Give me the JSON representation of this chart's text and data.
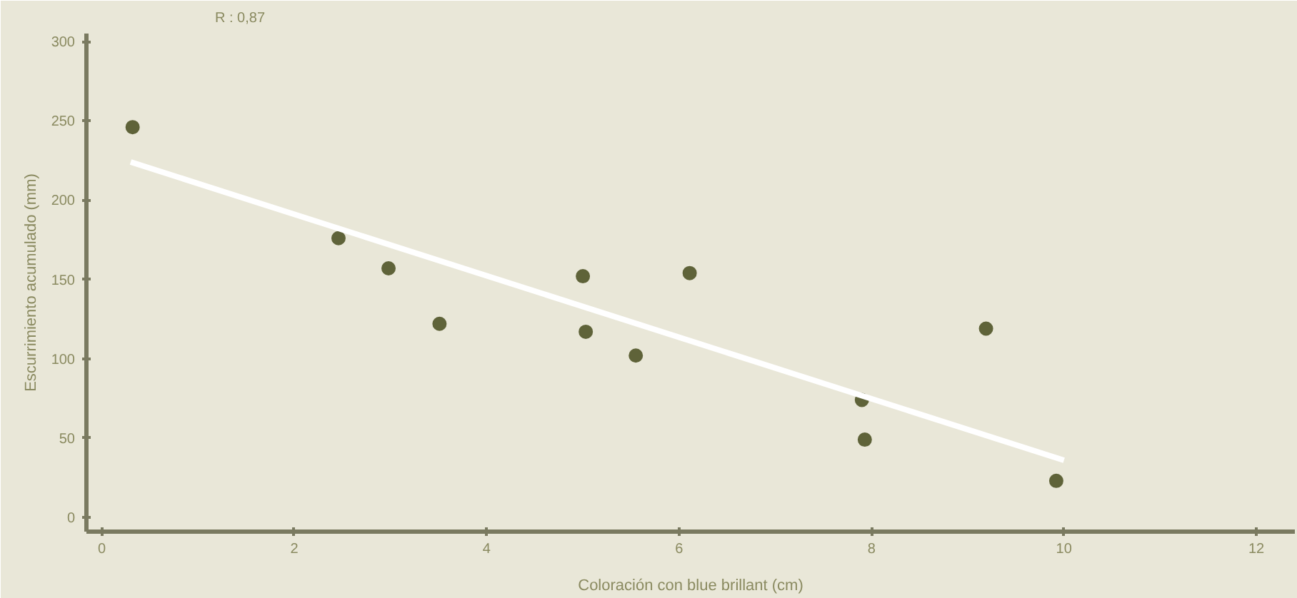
{
  "chart_data": {
    "type": "scatter",
    "xlabel": "Coloración con blue brillant (cm)",
    "ylabel": "Escurrimiento acumulado (mm)",
    "annotations": [
      "R : 0,87"
    ],
    "xlim": [
      -0.16,
      12.4
    ],
    "ylim": [
      -9,
      305
    ],
    "xticks": [
      0,
      2,
      4,
      6,
      8,
      10,
      12
    ],
    "yticks": [
      0,
      50,
      100,
      150,
      200,
      250,
      300
    ],
    "grid": false,
    "series": [
      {
        "marker": "circle",
        "color": "#5f6339",
        "x": [
          0.32,
          2.46,
          2.98,
          3.51,
          5.0,
          5.03,
          5.55,
          6.11,
          7.9,
          7.93,
          9.19,
          9.92
        ],
        "values": [
          246,
          176,
          157,
          122,
          152,
          117,
          102,
          154,
          74,
          49,
          119,
          23
        ]
      },
      {
        "type": "line",
        "marker": "none",
        "color": "#ffffff",
        "x": [
          0.3,
          10
        ],
        "values": [
          224,
          36
        ]
      }
    ]
  }
}
